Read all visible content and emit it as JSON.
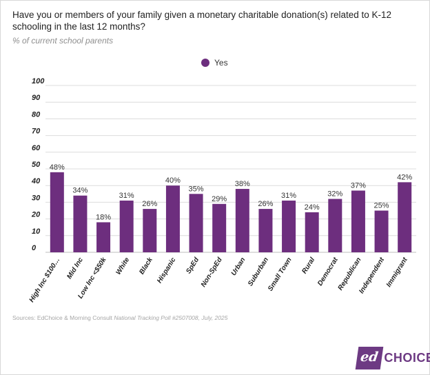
{
  "header": {
    "title": "Have you or members of your family given a monetary charitable donation(s) related to K-12 schooling in the last 12 months?",
    "subtitle": "% of current school parents"
  },
  "legend": {
    "label": "Yes",
    "color": "#6d2e7e"
  },
  "footer": {
    "source_prefix": "Sources: EdChoice & Morning Consult ",
    "source_italic": "National Tracking Poll #2507008, July, 2025"
  },
  "logo": {
    "mark": "ed",
    "word": "CHOICE",
    "color": "#6d3a83"
  },
  "chart_data": {
    "type": "bar",
    "title": "Have you or members of your family given a monetary charitable donation(s) related to K-12 schooling in the last 12 months?",
    "subtitle": "% of current school parents",
    "xlabel": "",
    "ylabel": "",
    "ylim": [
      0,
      100
    ],
    "yticks": [
      "0",
      "10",
      "20",
      "30",
      "40",
      "50",
      "60",
      "70",
      "80",
      "90",
      "100"
    ],
    "grid": true,
    "legend_position": "top-center",
    "categories": [
      "High Inc $100…",
      "Mid Inc",
      "Low Inc <$50k",
      "White",
      "Black",
      "Hispanic",
      "SpEd",
      "Non-SpEd",
      "Urban",
      "Suburban",
      "Small Town",
      "Rural",
      "Democrat",
      "Republican",
      "Independent",
      "Immigrant"
    ],
    "series": [
      {
        "name": "Yes",
        "color": "#6d2e7e",
        "values": [
          48,
          34,
          18,
          31,
          26,
          40,
          35,
          29,
          38,
          26,
          31,
          24,
          32,
          37,
          25,
          42
        ],
        "labels": [
          "48%",
          "34%",
          "18%",
          "31%",
          "26%",
          "40%",
          "35%",
          "29%",
          "38%",
          "26%",
          "31%",
          "24%",
          "32%",
          "37%",
          "25%",
          "42%"
        ]
      }
    ]
  }
}
